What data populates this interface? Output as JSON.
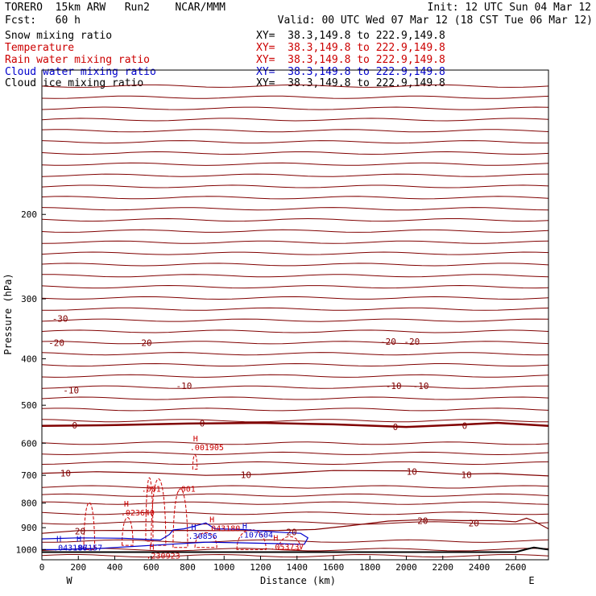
{
  "header": {
    "left_line1": "TORERO  15km ARW   Run2    NCAR/MMM",
    "left_line2": "Fcst:   60 h",
    "right_line1": "Init: 12 UTC Sun 04 Mar 12",
    "right_line2": "Valid: 00 UTC Wed 07 Mar 12 (18 CST Tue 06 Mar 12)",
    "fields": [
      {
        "label": "Snow mixing ratio",
        "xy": "XY=  38.3,149.8 to 222.9,149.8",
        "color": "#000000"
      },
      {
        "label": "Temperature",
        "xy": "XY=  38.3,149.8 to 222.9,149.8",
        "color": "#cc0000"
      },
      {
        "label": "Rain water mixing ratio",
        "xy": "XY=  38.3,149.8 to 222.9,149.8",
        "color": "#cc0000"
      },
      {
        "label": "Cloud water mixing ratio",
        "xy": "XY=  38.3,149.8 to 222.9,149.8",
        "color": "#0000cc"
      },
      {
        "label": "Cloud ice mixing ratio",
        "xy": "XY=  38.3,149.8 to 222.9,149.8",
        "color": "#000000"
      }
    ]
  },
  "chart_data": {
    "type": "line",
    "subtype": "vertical cross-section contour",
    "xlabel": "Distance (km)",
    "ylabel": "Pressure (hPa)",
    "xlim": [
      0,
      2780
    ],
    "ylim": [
      1050,
      100
    ],
    "y_scale": "log",
    "x_ticks": [
      0,
      200,
      400,
      600,
      800,
      1000,
      1200,
      1400,
      1600,
      1800,
      2000,
      2200,
      2400,
      2600
    ],
    "y_ticks": [
      200,
      300,
      400,
      500,
      600,
      700,
      800,
      900,
      1000
    ],
    "x_end_labels": {
      "left": "W",
      "right": "E"
    },
    "grid": false,
    "colors": {
      "temperature": "#800000",
      "rain": "#cc0000",
      "cloud_water": "#0000cc",
      "ground": "#000000"
    },
    "temperature_contour_levels": [
      -30,
      -20,
      -10,
      0,
      10,
      20
    ],
    "temperature_labels": [
      {
        "x": 100,
        "p": 330,
        "text": "-30"
      },
      {
        "x": 80,
        "p": 370,
        "text": "-20"
      },
      {
        "x": 560,
        "p": 370,
        "text": "-20"
      },
      {
        "x": 1900,
        "p": 368,
        "text": "-20"
      },
      {
        "x": 2030,
        "p": 368,
        "text": "-20"
      },
      {
        "x": 160,
        "p": 465,
        "text": "-10"
      },
      {
        "x": 780,
        "p": 455,
        "text": "-10"
      },
      {
        "x": 1930,
        "p": 455,
        "text": "-10"
      },
      {
        "x": 2080,
        "p": 455,
        "text": "-10"
      },
      {
        "x": 180,
        "p": 550,
        "text": "0"
      },
      {
        "x": 880,
        "p": 545,
        "text": "0"
      },
      {
        "x": 1940,
        "p": 555,
        "text": "0"
      },
      {
        "x": 2320,
        "p": 552,
        "text": "0"
      },
      {
        "x": 130,
        "p": 693,
        "text": "10"
      },
      {
        "x": 1120,
        "p": 698,
        "text": "10"
      },
      {
        "x": 2030,
        "p": 688,
        "text": "10"
      },
      {
        "x": 2330,
        "p": 698,
        "text": "10"
      },
      {
        "x": 210,
        "p": 915,
        "text": "20"
      },
      {
        "x": 1370,
        "p": 918,
        "text": "20"
      },
      {
        "x": 2090,
        "p": 870,
        "text": "20"
      },
      {
        "x": 2370,
        "p": 880,
        "text": "20"
      }
    ],
    "temperature_isotherms": [
      {
        "level": 0,
        "bold": true,
        "points": [
          [
            0,
            552
          ],
          [
            400,
            550
          ],
          [
            800,
            546
          ],
          [
            1200,
            544
          ],
          [
            1600,
            548
          ],
          [
            2000,
            555
          ],
          [
            2300,
            549
          ],
          [
            2500,
            544
          ],
          [
            2780,
            552
          ]
        ]
      },
      {
        "level": 10,
        "bold": false,
        "points": [
          [
            0,
            693
          ],
          [
            300,
            688
          ],
          [
            600,
            692
          ],
          [
            900,
            700
          ],
          [
            1200,
            697
          ],
          [
            1600,
            684
          ],
          [
            2000,
            685
          ],
          [
            2300,
            696
          ],
          [
            2500,
            694
          ],
          [
            2780,
            702
          ]
        ]
      },
      {
        "level": 20,
        "bold": false,
        "points": [
          [
            0,
            925
          ],
          [
            200,
            913
          ],
          [
            400,
            912
          ],
          [
            700,
            912
          ],
          [
            1000,
            913
          ],
          [
            1300,
            912
          ],
          [
            1500,
            908
          ],
          [
            1700,
            891
          ],
          [
            1900,
            872
          ],
          [
            2100,
            866
          ],
          [
            2300,
            870
          ],
          [
            2500,
            870
          ],
          [
            2600,
            875
          ],
          [
            2660,
            860
          ],
          [
            2700,
            872
          ],
          [
            2780,
            905
          ]
        ]
      }
    ],
    "rain_labels": [
      {
        "x": 830,
        "p": 595,
        "text": "H",
        "value": ".001905"
      },
      {
        "x": 450,
        "p": 813,
        "text": "H",
        "value": ".023640"
      },
      {
        "x": 920,
        "p": 878,
        "text": "H",
        "value": ".043180"
      },
      {
        "x": 1270,
        "p": 958,
        "text": "H",
        "value": ".053737"
      },
      {
        "x": 590,
        "p": 1000,
        "text": "H",
        "value": ".230923"
      }
    ],
    "rain_contour_labels": [
      {
        "x": 600,
        "p": 758,
        "text": ".001"
      },
      {
        "x": 790,
        "p": 758,
        "text": ".001"
      }
    ],
    "cloud_water_labels": [
      {
        "x": 80,
        "p": 962,
        "text": "H",
        "value": ".043186"
      },
      {
        "x": 190,
        "p": 962,
        "text": "H",
        "value": ".07157"
      },
      {
        "x": 820,
        "p": 910,
        "text": "H",
        "value": ".30856"
      },
      {
        "x": 1100,
        "p": 905,
        "text": "H",
        "value": ".107604"
      }
    ]
  }
}
